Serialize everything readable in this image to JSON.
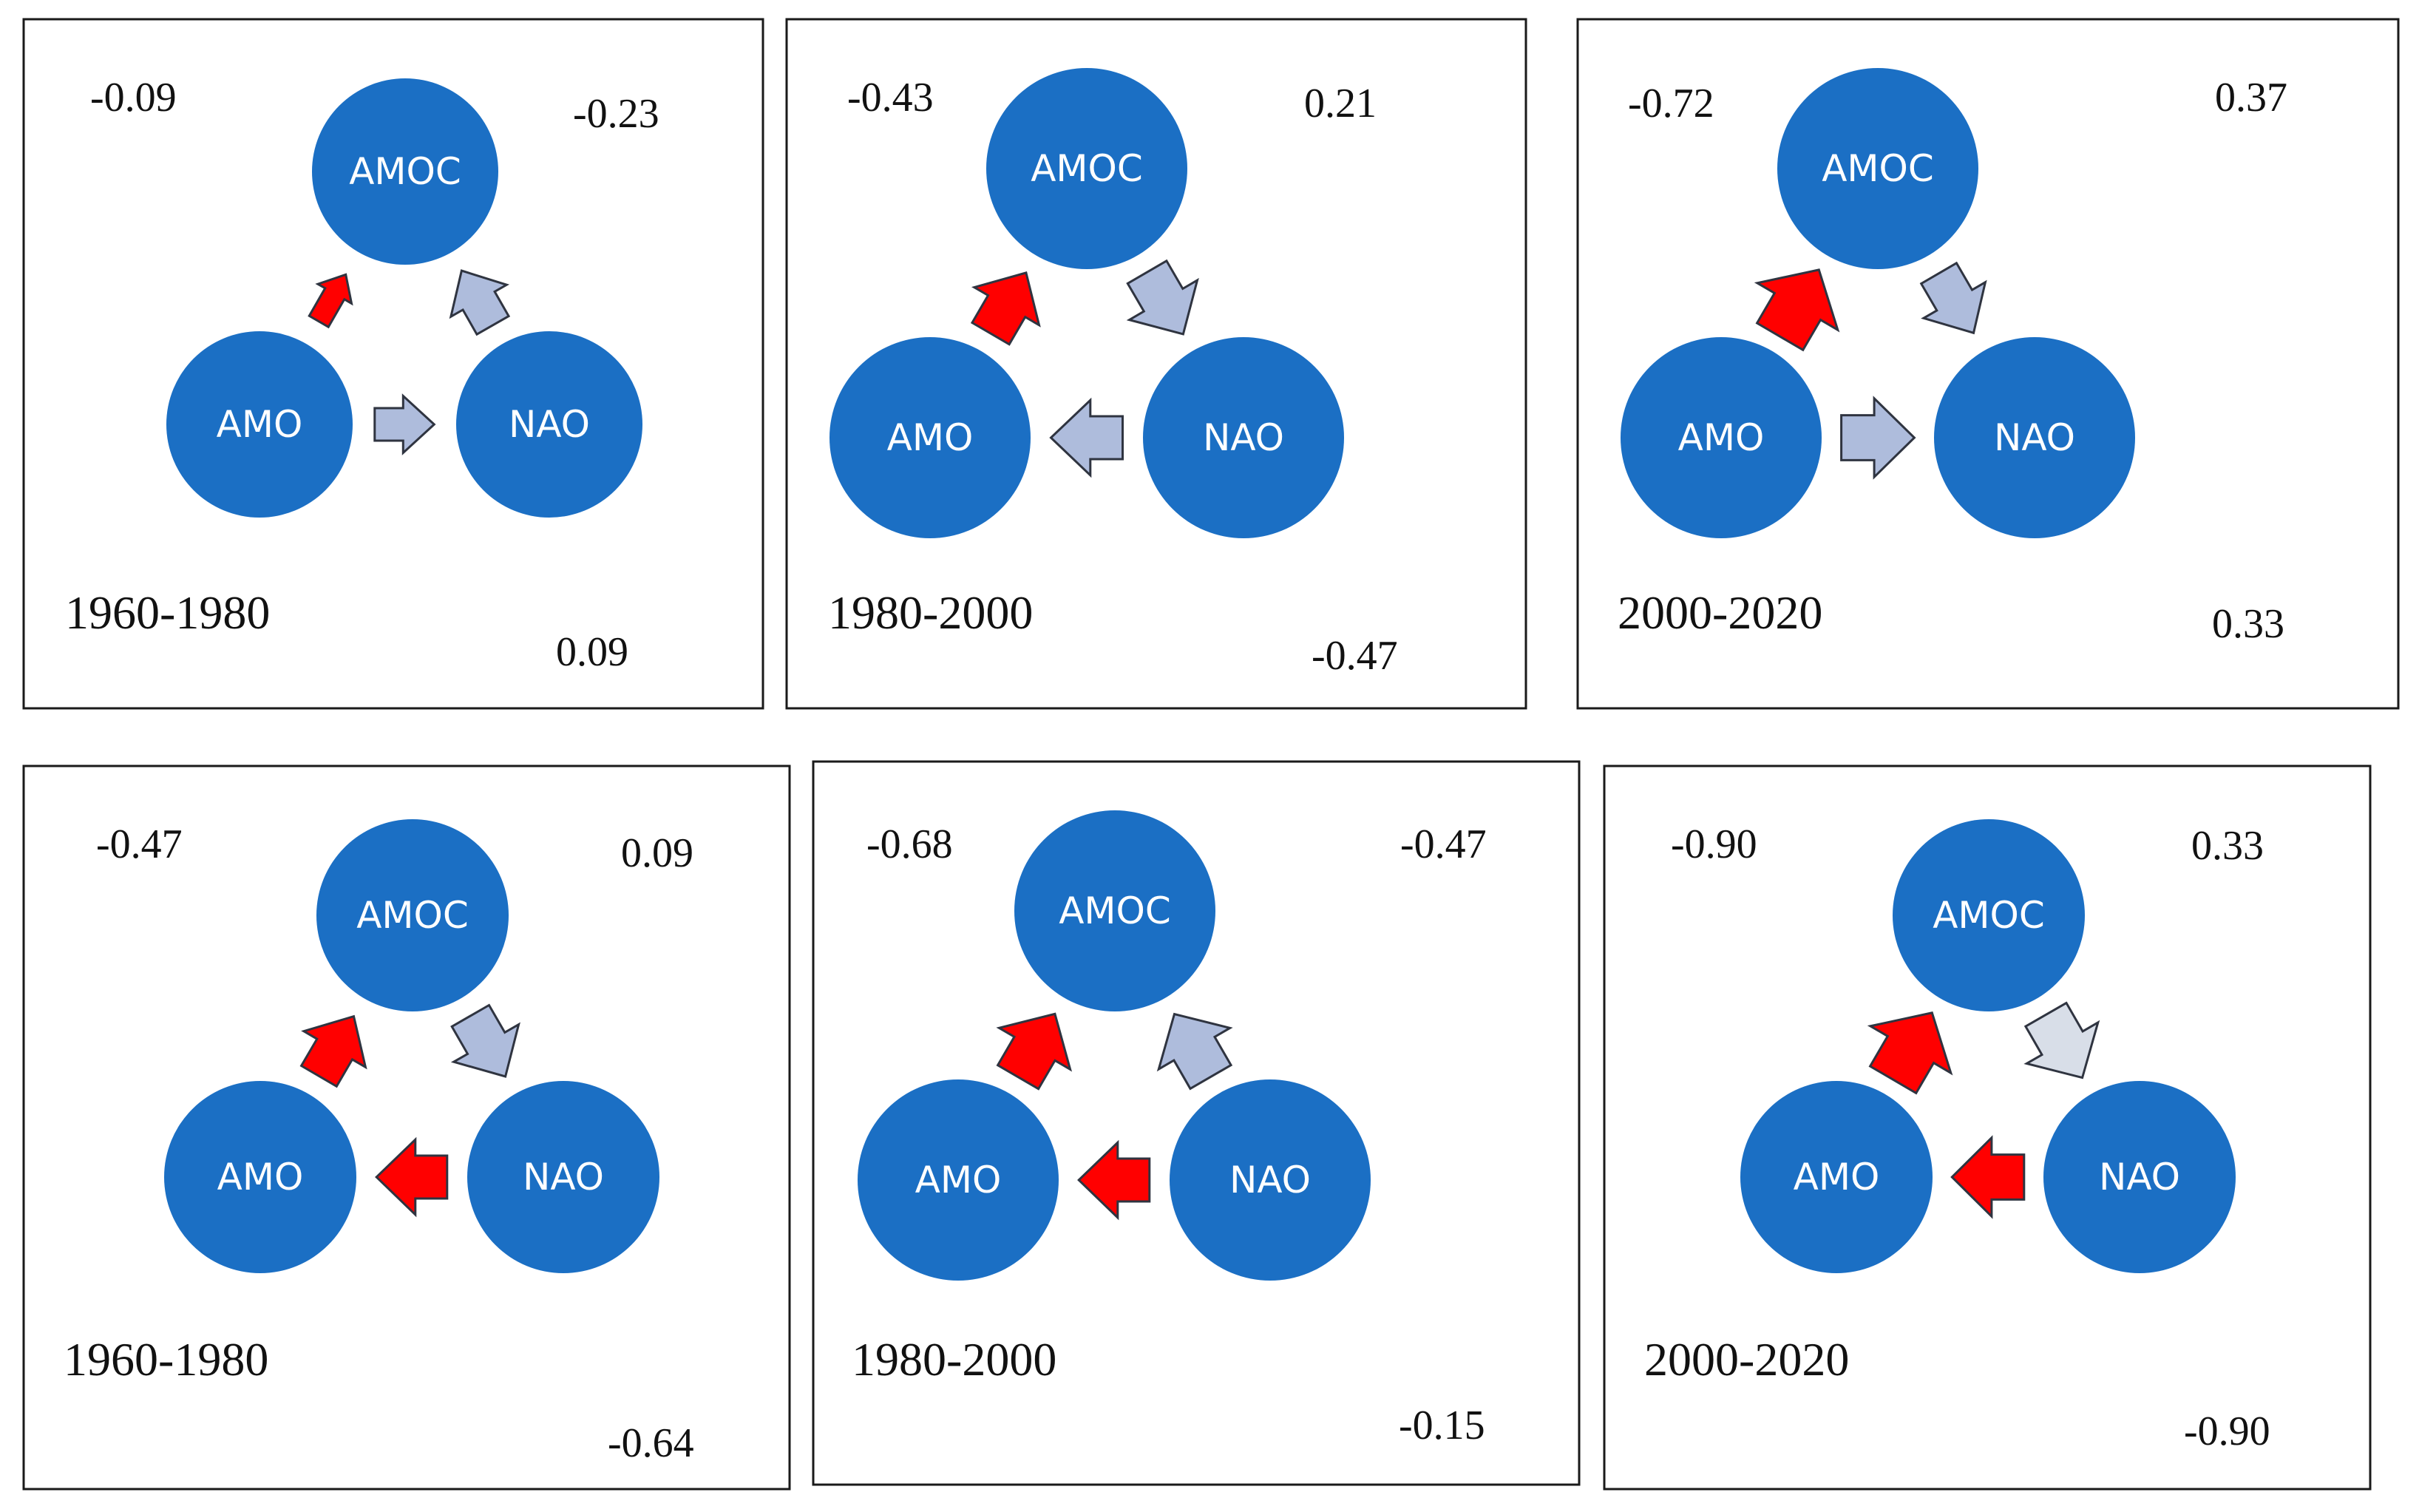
{
  "colors": {
    "node_fill": "#1b6fc4",
    "node_text": "#ffffff",
    "arrow_red": "#ff0000",
    "arrow_blue_grey": "#aebcdc",
    "arrow_light_grey": "#d8dee8",
    "frame": "#1a1a1a"
  },
  "nodes": {
    "amoc": "AMOC",
    "amo": "AMO",
    "nao": "NAO"
  },
  "panels": [
    {
      "period": "1960-1980",
      "top_left": "-0.09",
      "top_right": "-0.23",
      "bottom_right": "0.09",
      "arrows": [
        {
          "from": "AMO",
          "to": "AMOC",
          "color": "red",
          "strength": 0.25
        },
        {
          "from": "NAO",
          "to": "AMOC",
          "color": "blue-grey",
          "strength": 0.6
        },
        {
          "from": "AMO",
          "to": "NAO",
          "color": "blue-grey",
          "strength": 0.5
        }
      ]
    },
    {
      "period": "1980-2000",
      "top_left": "-0.43",
      "top_right": "0.21",
      "bottom_right": "-0.47",
      "arrows": [
        {
          "from": "AMO",
          "to": "AMOC",
          "color": "red",
          "strength": 0.75
        },
        {
          "from": "AMOC",
          "to": "NAO",
          "color": "blue-grey",
          "strength": 0.8
        },
        {
          "from": "NAO",
          "to": "AMO",
          "color": "blue-grey",
          "strength": 0.75
        }
      ]
    },
    {
      "period": "2000-2020",
      "top_left": "-0.72",
      "top_right": "0.37",
      "bottom_right": "0.33",
      "arrows": [
        {
          "from": "AMO",
          "to": "AMOC",
          "color": "red",
          "strength": 1.0
        },
        {
          "from": "AMOC",
          "to": "NAO",
          "color": "blue-grey",
          "strength": 0.7
        },
        {
          "from": "AMO",
          "to": "NAO",
          "color": "blue-grey",
          "strength": 0.8
        }
      ]
    },
    {
      "period": "1960-1980",
      "top_left": "-0.47",
      "top_right": "0.09",
      "bottom_right": "-0.64",
      "arrows": [
        {
          "from": "AMO",
          "to": "AMOC",
          "color": "red",
          "strength": 0.7
        },
        {
          "from": "AMOC",
          "to": "NAO",
          "color": "blue-grey",
          "strength": 0.75
        },
        {
          "from": "NAO",
          "to": "AMO",
          "color": "red",
          "strength": 0.75
        }
      ]
    },
    {
      "period": "1980-2000",
      "top_left": "-0.68",
      "top_right": "-0.47",
      "bottom_right": "-0.15",
      "arrows": [
        {
          "from": "AMO",
          "to": "AMOC",
          "color": "red",
          "strength": 0.85
        },
        {
          "from": "NAO",
          "to": "AMOC",
          "color": "blue-grey",
          "strength": 0.85
        },
        {
          "from": "NAO",
          "to": "AMO",
          "color": "red",
          "strength": 0.75
        }
      ]
    },
    {
      "period": "2000-2020",
      "top_left": "-0.90",
      "top_right": "0.33",
      "bottom_right": "-0.90",
      "arrows": [
        {
          "from": "AMO",
          "to": "AMOC",
          "color": "red",
          "strength": 1.0
        },
        {
          "from": "AMOC",
          "to": "NAO",
          "color": "light-grey",
          "strength": 0.85
        },
        {
          "from": "NAO",
          "to": "AMO",
          "color": "red",
          "strength": 0.8
        }
      ]
    }
  ]
}
